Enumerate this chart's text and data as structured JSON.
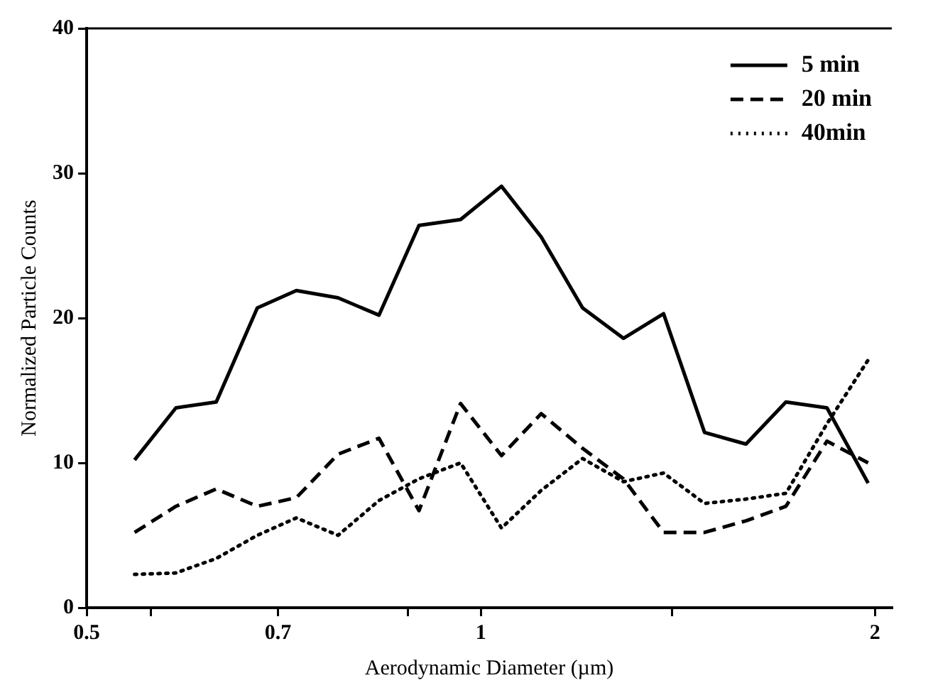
{
  "chart_data": {
    "type": "line",
    "xlabel": "Aerodynamic Diameter (µm)",
    "ylabel": "Normalized Particle Counts",
    "log": "x",
    "x": [
      0.544,
      0.585,
      0.628,
      0.675,
      0.723,
      0.778,
      0.836,
      0.897,
      0.965,
      1.037,
      1.112,
      1.196,
      1.285,
      1.379,
      1.482,
      1.594,
      1.71,
      1.838,
      1.976
    ],
    "series": [
      {
        "name": "5 min",
        "color": "#000000",
        "line_style": "solid",
        "values": [
          10.2,
          13.8,
          14.2,
          20.7,
          21.9,
          21.4,
          20.2,
          26.4,
          26.8,
          29.1,
          25.6,
          20.7,
          18.6,
          20.3,
          12.1,
          11.3,
          14.2,
          13.8,
          8.6
        ]
      },
      {
        "name": "20 min",
        "color": "#000000",
        "line_style": "dashed",
        "values": [
          5.2,
          7.0,
          8.2,
          7.0,
          7.6,
          10.6,
          11.7,
          6.7,
          14.1,
          10.5,
          13.4,
          11.0,
          8.9,
          5.2,
          5.2,
          6.0,
          7.0,
          11.5,
          10.0
        ]
      },
      {
        "name": "40min",
        "color": "#000000",
        "line_style": "dotted",
        "values": [
          2.3,
          2.4,
          3.4,
          5.0,
          6.2,
          5.0,
          7.4,
          8.9,
          10.0,
          5.5,
          8.1,
          10.3,
          8.7,
          9.3,
          7.2,
          7.5,
          7.9,
          12.7,
          17.1
        ]
      }
    ],
    "xlim": [
      0.5,
      2.06
    ],
    "xticks": [
      0.5,
      {
        "value": 0.56,
        "label": null
      },
      0.7,
      {
        "value": 0.88,
        "label": null
      },
      1,
      {
        "value": 1.4,
        "label": null
      },
      2
    ],
    "ylim": [
      0,
      40
    ],
    "yticks": [
      0,
      10,
      20,
      30,
      40
    ],
    "grid": false,
    "legend": "top right",
    "marker": "none"
  }
}
